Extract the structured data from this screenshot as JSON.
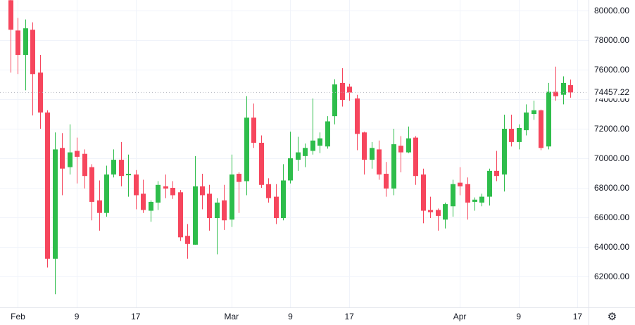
{
  "theme": {
    "background": "#ffffff",
    "text_color": "#131722",
    "grid_color": "#f0f3fa",
    "axis_border_color": "#e0e3eb",
    "up_color": "#2ebd4b",
    "down_color": "#f6465d",
    "price_line_color": "#b2b5be"
  },
  "icons": {
    "settings_gear": "⚙"
  },
  "last_price_label": "74457.22",
  "chart_data": {
    "type": "candlestick",
    "title": "",
    "xlabel": "",
    "ylabel": "",
    "grid": "on",
    "last_price": 74457.22,
    "ylim": [
      59900,
      80750
    ],
    "y_axis": {
      "ticks": [
        {
          "label": "80000.00",
          "price": 80000
        },
        {
          "label": "78000.00",
          "price": 78000
        },
        {
          "label": "76000.00",
          "price": 76000
        },
        {
          "label": "74000.00",
          "price": 74000
        },
        {
          "label": "72000.00",
          "price": 72000
        },
        {
          "label": "70000.00",
          "price": 70000
        },
        {
          "label": "68000.00",
          "price": 68000
        },
        {
          "label": "66000.00",
          "price": 66000
        },
        {
          "label": "64000.00",
          "price": 64000
        },
        {
          "label": "62000.00",
          "price": 62000
        }
      ]
    },
    "x_axis": {
      "ticks": [
        {
          "label": "Feb",
          "index": 1
        },
        {
          "label": "9",
          "index": 9
        },
        {
          "label": "17",
          "index": 17
        },
        {
          "label": "Mar",
          "index": 30
        },
        {
          "label": "9",
          "index": 38
        },
        {
          "label": "17",
          "index": 46
        },
        {
          "label": "Apr",
          "index": 61
        },
        {
          "label": "9",
          "index": 69
        },
        {
          "label": "17",
          "index": 77
        }
      ]
    },
    "candle_fields": [
      "date",
      "open",
      "high",
      "low",
      "close"
    ],
    "candles": [
      [
        "Jan 31",
        80700,
        80750,
        75800,
        78700
      ],
      [
        "Feb 1",
        78650,
        79500,
        75700,
        77000
      ],
      [
        "Feb 2",
        77000,
        79400,
        74600,
        78800
      ],
      [
        "Feb 3",
        78700,
        79200,
        72900,
        75700
      ],
      [
        "Feb 4",
        75800,
        77000,
        72000,
        73100
      ],
      [
        "Feb 5",
        73100,
        73250,
        62600,
        63200
      ],
      [
        "Feb 6",
        63200,
        71750,
        60800,
        70600
      ],
      [
        "Feb 7",
        70700,
        71700,
        67500,
        69300
      ],
      [
        "Feb 8",
        69400,
        72300,
        68900,
        70400
      ],
      [
        "Feb 9",
        70500,
        71400,
        68300,
        70100
      ],
      [
        "Feb 10",
        70300,
        70600,
        67950,
        68800
      ],
      [
        "Feb 11",
        69400,
        69600,
        65800,
        67050
      ],
      [
        "Feb 12",
        67150,
        68500,
        65100,
        66300
      ],
      [
        "Feb 13",
        66300,
        69500,
        66050,
        68900
      ],
      [
        "Feb 14",
        68900,
        70600,
        68700,
        69900
      ],
      [
        "Feb 15",
        69900,
        71100,
        68100,
        68800
      ],
      [
        "Feb 16",
        68850,
        70250,
        67400,
        68950
      ],
      [
        "Feb 17",
        68900,
        69200,
        66550,
        67500
      ],
      [
        "Feb 18",
        67600,
        68550,
        66300,
        66500
      ],
      [
        "Feb 19",
        66450,
        67150,
        65700,
        67050
      ],
      [
        "Feb 20",
        67000,
        68450,
        66500,
        68200
      ],
      [
        "Feb 21",
        68100,
        68900,
        67300,
        67950
      ],
      [
        "Feb 22",
        68000,
        68450,
        67250,
        67500
      ],
      [
        "Feb 23",
        67700,
        67850,
        64400,
        64650
      ],
      [
        "Feb 24",
        64750,
        65550,
        63200,
        64200
      ],
      [
        "Feb 25",
        64150,
        70150,
        64150,
        68100
      ],
      [
        "Feb 26",
        68100,
        68950,
        66550,
        67500
      ],
      [
        "Feb 27",
        67600,
        68200,
        65100,
        65950
      ],
      [
        "Feb 28",
        65950,
        67300,
        63500,
        67000
      ],
      [
        "Feb 29",
        67150,
        68200,
        65150,
        65800
      ],
      [
        "Mar 1",
        65850,
        70250,
        65350,
        68900
      ],
      [
        "Mar 2",
        68950,
        69050,
        66300,
        68400
      ],
      [
        "Mar 3",
        68450,
        74200,
        67500,
        72750
      ],
      [
        "Mar 4",
        72750,
        73700,
        70700,
        71050
      ],
      [
        "Mar 5",
        71050,
        71550,
        68000,
        68200
      ],
      [
        "Mar 6",
        68250,
        68650,
        67000,
        67300
      ],
      [
        "Mar 7",
        67400,
        68250,
        65550,
        65950
      ],
      [
        "Mar 8",
        65950,
        69600,
        65800,
        68500
      ],
      [
        "Mar 9",
        68500,
        71800,
        68300,
        70000
      ],
      [
        "Mar 10",
        69900,
        71450,
        69150,
        70400
      ],
      [
        "Mar 11",
        70150,
        71000,
        69400,
        70700
      ],
      [
        "Mar 12",
        70500,
        74050,
        70250,
        71200
      ],
      [
        "Mar 13",
        70850,
        71750,
        70350,
        71350
      ],
      [
        "Mar 14",
        70800,
        72850,
        70650,
        72500
      ],
      [
        "Mar 15",
        72850,
        75350,
        72300,
        75000
      ],
      [
        "Mar 16",
        75100,
        76100,
        73500,
        73950
      ],
      [
        "Mar 17",
        74850,
        75050,
        73900,
        74450
      ],
      [
        "Mar 18",
        74050,
        74300,
        70550,
        71650
      ],
      [
        "Mar 19",
        71750,
        71800,
        68900,
        69900
      ],
      [
        "Mar 20",
        69900,
        71100,
        69300,
        70700
      ],
      [
        "Mar 21",
        70600,
        71200,
        68550,
        68900
      ],
      [
        "Mar 22",
        68950,
        69750,
        67400,
        67950
      ],
      [
        "Mar 23",
        67950,
        72000,
        67500,
        70950
      ],
      [
        "Mar 24",
        70850,
        71500,
        69050,
        70400
      ],
      [
        "Mar 25",
        70400,
        72150,
        70350,
        71350
      ],
      [
        "Mar 26",
        71400,
        71500,
        68200,
        68800
      ],
      [
        "Mar 27",
        68900,
        69300,
        65600,
        66450
      ],
      [
        "Mar 28",
        66500,
        67400,
        65950,
        66350
      ],
      [
        "Mar 29",
        66500,
        66600,
        65100,
        66100
      ],
      [
        "Mar 30",
        65850,
        67000,
        65250,
        66900
      ],
      [
        "Mar 31",
        66750,
        68550,
        66050,
        68250
      ],
      [
        "Apr 1",
        68350,
        69400,
        67500,
        68100
      ],
      [
        "Apr 2",
        68250,
        68700,
        65850,
        67000
      ],
      [
        "Apr 3",
        67050,
        67350,
        66450,
        67200
      ],
      [
        "Apr 4",
        67000,
        67600,
        66750,
        67400
      ],
      [
        "Apr 5",
        67400,
        69300,
        66800,
        69150
      ],
      [
        "Apr 6",
        69150,
        70500,
        68450,
        68800
      ],
      [
        "Apr 7",
        68900,
        72950,
        67750,
        72000
      ],
      [
        "Apr 8",
        72000,
        72950,
        70800,
        71100
      ],
      [
        "Apr 9",
        71100,
        72300,
        70600,
        72050
      ],
      [
        "Apr 10",
        71900,
        73650,
        71550,
        73100
      ],
      [
        "Apr 11",
        73000,
        73900,
        72600,
        73250
      ],
      [
        "Apr 12",
        73250,
        73300,
        70550,
        70700
      ],
      [
        "Apr 13",
        70800,
        75100,
        70600,
        74500
      ],
      [
        "Apr 14",
        74500,
        76200,
        73900,
        74200
      ],
      [
        "Apr 15",
        74300,
        75550,
        73650,
        75100
      ],
      [
        "Apr 16",
        74950,
        75330,
        74100,
        74457.22
      ]
    ]
  }
}
